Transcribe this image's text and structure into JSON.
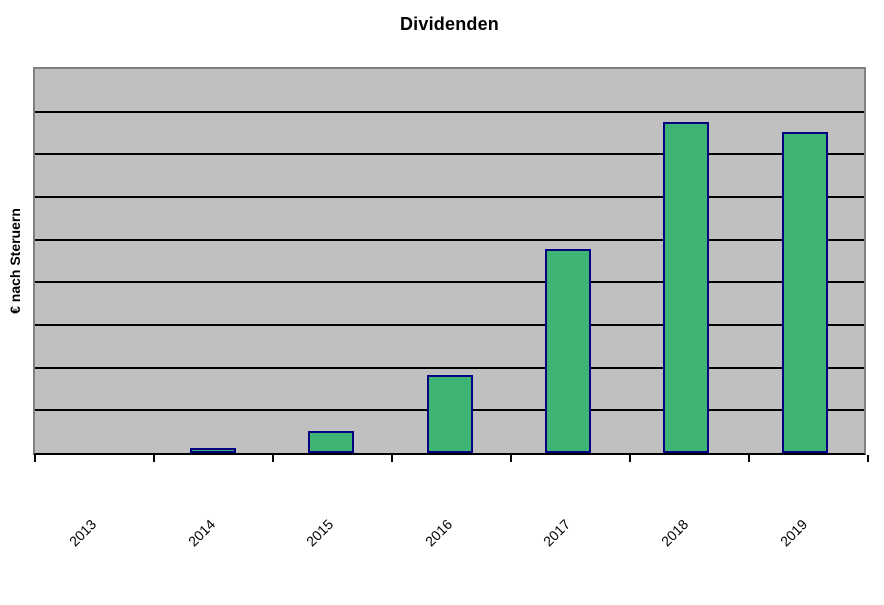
{
  "chart_data": {
    "type": "bar",
    "title": "Dividenden",
    "xlabel": "",
    "ylabel": "€ nach Steruern",
    "categories": [
      "2013",
      "2014",
      "2015",
      "2016",
      "2017",
      "2018",
      "2019"
    ],
    "values": [
      0,
      0.12,
      0.51,
      1.83,
      4.78,
      7.76,
      7.53
    ],
    "ylim": [
      0,
      9
    ],
    "y_tick_labels": [],
    "gridline_bands": 9,
    "grid": "horizontal",
    "legend": "none",
    "colors": {
      "bar_fill": "#3DB374",
      "bar_border": "#000080",
      "plot_background": "#C0C0C0",
      "plot_border": "#808080",
      "gridline": "#000000",
      "axis_line": "#000000",
      "text": "#000000",
      "page_background": "#FFFFFF"
    }
  }
}
